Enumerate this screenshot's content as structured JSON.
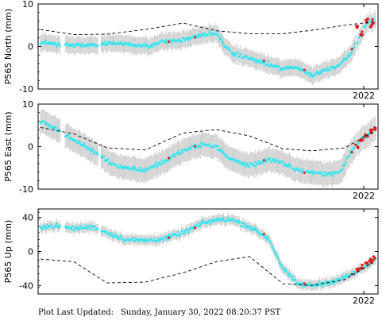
{
  "footer": {
    "label": "Plot Last Updated:",
    "timestamp": "Sunday, January 30, 2022 08:20:37 PST"
  },
  "colors": {
    "daily_points": "#33e6f0",
    "rapid_points": "#e01818",
    "error_bars": "#c8c8c8",
    "model_line": "#000000"
  },
  "chart_data": [
    {
      "type": "scatter",
      "title": "",
      "xlabel": "",
      "ylabel": "P565 North (mm)",
      "ylim": [
        -10,
        10
      ],
      "yticks": [
        -10,
        0,
        10
      ],
      "xticks": [
        {
          "value": 2022.0,
          "label": "2022"
        }
      ],
      "xlim": [
        2015.15,
        2022.3
      ],
      "grid": false,
      "error_bar_mm": 2.0,
      "series": [
        {
          "role": "daily",
          "x": [
            2015.2,
            2015.5,
            2015.9,
            2016.3,
            2016.7,
            2017.0,
            2017.4,
            2017.8,
            2018.2,
            2018.6,
            2018.9,
            2019.2,
            2019.6,
            2020.0,
            2020.3,
            2020.6,
            2020.9,
            2021.2,
            2021.5,
            2021.8,
            2022.05,
            2022.2
          ],
          "y": [
            1.0,
            0.5,
            0.3,
            0.2,
            0.8,
            0.6,
            0.0,
            1.2,
            1.5,
            2.8,
            3.0,
            -1.5,
            -2.8,
            -4.3,
            -5.3,
            -4.8,
            -6.8,
            -5.5,
            -4.2,
            -0.5,
            5.3,
            6.0
          ]
        },
        {
          "role": "rapid",
          "x": [
            2021.85,
            2021.95,
            2022.05,
            2022.15,
            2022.22
          ],
          "y": [
            4.5,
            3.0,
            6.0,
            5.0,
            5.8
          ]
        },
        {
          "role": "model",
          "x": [
            2015.2,
            2015.9,
            2016.6,
            2017.4,
            2018.2,
            2018.9,
            2019.6,
            2020.3,
            2020.9,
            2021.6,
            2022.2
          ],
          "y": [
            4.0,
            2.8,
            2.9,
            4.0,
            5.5,
            3.7,
            3.0,
            3.0,
            3.8,
            5.0,
            5.8
          ]
        }
      ]
    },
    {
      "type": "scatter",
      "title": "",
      "xlabel": "",
      "ylabel": "P565 East (mm)",
      "ylim": [
        -10,
        10
      ],
      "yticks": [
        -10,
        0,
        10
      ],
      "xticks": [
        {
          "value": 2022.0,
          "label": "2022"
        }
      ],
      "xlim": [
        2015.15,
        2022.3
      ],
      "grid": false,
      "error_bar_mm": 2.8,
      "series": [
        {
          "role": "daily",
          "x": [
            2015.2,
            2015.5,
            2015.9,
            2016.3,
            2016.7,
            2017.0,
            2017.4,
            2017.8,
            2018.2,
            2018.6,
            2018.9,
            2019.2,
            2019.6,
            2020.0,
            2020.3,
            2020.6,
            2020.9,
            2021.2,
            2021.5,
            2021.8,
            2022.05,
            2022.2
          ],
          "y": [
            6.0,
            4.5,
            1.5,
            -1.0,
            -4.0,
            -5.0,
            -5.5,
            -3.5,
            -1.0,
            0.5,
            0.0,
            -3.0,
            -4.5,
            -3.0,
            -4.0,
            -5.5,
            -6.0,
            -6.5,
            -6.0,
            0.0,
            2.5,
            4.0
          ]
        },
        {
          "role": "rapid",
          "x": [
            2021.85,
            2021.95,
            2022.05,
            2022.15,
            2022.22
          ],
          "y": [
            0.0,
            1.5,
            2.5,
            3.5,
            4.2
          ]
        },
        {
          "role": "model",
          "x": [
            2015.2,
            2015.9,
            2016.6,
            2017.4,
            2018.2,
            2018.9,
            2019.6,
            2020.3,
            2020.9,
            2021.6,
            2022.2
          ],
          "y": [
            4.5,
            3.0,
            -0.3,
            -0.8,
            3.2,
            4.0,
            2.5,
            -0.5,
            -1.0,
            -0.3,
            3.5
          ]
        }
      ]
    },
    {
      "type": "scatter",
      "title": "",
      "xlabel": "",
      "ylabel": "P565 Up (mm)",
      "ylim": [
        -50,
        50
      ],
      "yticks": [
        -40,
        0,
        40
      ],
      "xticks": [
        {
          "value": 2022.0,
          "label": "2022"
        }
      ],
      "xlim": [
        2015.15,
        2022.3
      ],
      "grid": false,
      "error_bar_mm": 6.0,
      "series": [
        {
          "role": "daily",
          "x": [
            2015.2,
            2015.5,
            2015.9,
            2016.3,
            2016.7,
            2017.0,
            2017.4,
            2017.8,
            2018.2,
            2018.6,
            2018.9,
            2019.2,
            2019.6,
            2020.0,
            2020.3,
            2020.6,
            2020.9,
            2021.2,
            2021.5,
            2021.8,
            2022.05,
            2022.2
          ],
          "y": [
            29,
            30,
            27,
            29,
            20,
            14,
            13,
            15,
            22,
            33,
            37,
            38,
            29,
            15,
            -20,
            -38,
            -40,
            -37,
            -33,
            -25,
            -18,
            -10
          ]
        },
        {
          "role": "rapid",
          "x": [
            2021.85,
            2021.95,
            2022.05,
            2022.15,
            2022.22
          ],
          "y": [
            -22,
            -18,
            -14,
            -11,
            -8
          ]
        },
        {
          "role": "model",
          "x": [
            2015.2,
            2015.9,
            2016.6,
            2017.4,
            2018.2,
            2018.9,
            2019.6,
            2020.3,
            2020.9,
            2021.6,
            2022.2
          ],
          "y": [
            -9,
            -12,
            -37,
            -36,
            -25,
            -12,
            -6,
            -38,
            -40,
            -33,
            -13
          ]
        }
      ]
    }
  ]
}
